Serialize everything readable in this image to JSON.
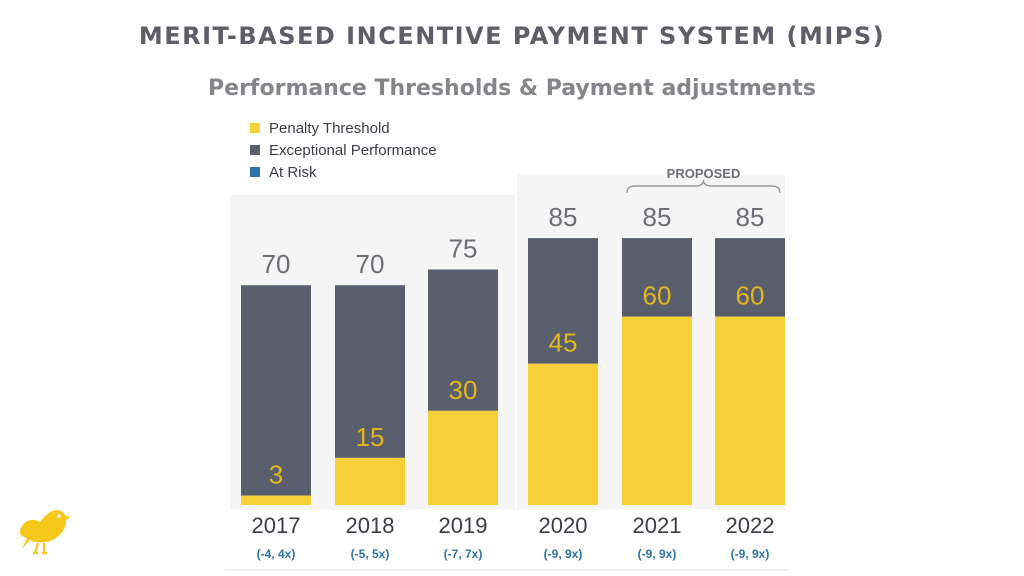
{
  "title": "MERIT-BASED INCENTIVE PAYMENT SYSTEM (MIPS)",
  "subtitle": "Performance Thresholds & Payment adjustments",
  "proposed_label": "PROPOSED",
  "colors": {
    "penalty": "#f7d038",
    "exceptional": "#585e6b",
    "at_risk": "#2d72a8",
    "label_gray": "#6a6d74",
    "label_yellow": "#e3b61f",
    "year_text": "#3a3d44"
  },
  "logo_icon": "yellow-bird-icon",
  "chart_data": {
    "type": "bar",
    "stacked": true,
    "categories": [
      "2017",
      "2018",
      "2019",
      "2020",
      "2021",
      "2022"
    ],
    "series": [
      {
        "name": "Penalty Threshold",
        "values": [
          3,
          15,
          30,
          45,
          60,
          60
        ]
      },
      {
        "name": "Exceptional Performance",
        "values": [
          67,
          55,
          45,
          40,
          25,
          25
        ]
      },
      {
        "name": "At Risk",
        "values": [
          0,
          0,
          0,
          0,
          0,
          0
        ]
      }
    ],
    "totals": [
      70,
      70,
      75,
      85,
      85,
      85
    ],
    "at_risk_labels": [
      "(-4, 4x)",
      "(-5, 5x)",
      "(-7, 7x)",
      "(-9, 9x)",
      "(-9, 9x)",
      "(-9, 9x)"
    ],
    "proposed_years": [
      "2021",
      "2022"
    ],
    "ylim": [
      0,
      100
    ],
    "legend": "top-left",
    "grid": false
  }
}
